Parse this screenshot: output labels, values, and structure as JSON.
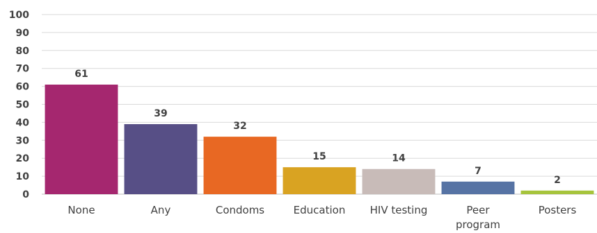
{
  "chart_data": {
    "type": "bar",
    "title": "",
    "xlabel": "",
    "ylabel": "",
    "ylim": [
      0,
      100
    ],
    "yticks": [
      0,
      10,
      20,
      30,
      40,
      50,
      60,
      70,
      80,
      90,
      100
    ],
    "grid": true,
    "categories": [
      "None",
      "Any",
      "Condoms",
      "Education",
      "HIV testing",
      "Peer program",
      "Posters"
    ],
    "values": [
      61,
      39,
      32,
      15,
      14,
      7,
      2
    ],
    "colors": [
      "#a5276f",
      "#574f86",
      "#e86823",
      "#d9a322",
      "#c8bbb8",
      "#5673a4",
      "#a6c43c"
    ]
  }
}
